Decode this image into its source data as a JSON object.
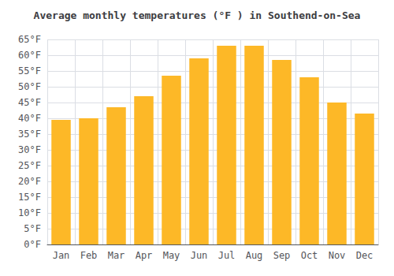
{
  "chart_data": {
    "type": "bar",
    "title": "Average monthly temperatures (°F ) in Southend-on-Sea",
    "categories": [
      "Jan",
      "Feb",
      "Mar",
      "Apr",
      "May",
      "Jun",
      "Jul",
      "Aug",
      "Sep",
      "Oct",
      "Nov",
      "Dec"
    ],
    "values": [
      39.5,
      40.0,
      43.5,
      47.0,
      53.5,
      59.0,
      63.0,
      63.0,
      58.5,
      53.0,
      45.0,
      41.5
    ],
    "color": "#FDB827",
    "ylim": [
      0,
      65
    ],
    "yticks": [
      {
        "value": 0,
        "label": "0°F"
      },
      {
        "value": 5,
        "label": "5°F"
      },
      {
        "value": 10,
        "label": "10°F"
      },
      {
        "value": 15,
        "label": "15°F"
      },
      {
        "value": 20,
        "label": "20°F"
      },
      {
        "value": 25,
        "label": "25°F"
      },
      {
        "value": 30,
        "label": "30°F"
      },
      {
        "value": 35,
        "label": "35°F"
      },
      {
        "value": 40,
        "label": "40°F"
      },
      {
        "value": 45,
        "label": "45°F"
      },
      {
        "value": 50,
        "label": "50°F"
      },
      {
        "value": 55,
        "label": "55°F"
      },
      {
        "value": 60,
        "label": "60°F"
      },
      {
        "value": 65,
        "label": "65°F"
      }
    ],
    "grid": true
  }
}
